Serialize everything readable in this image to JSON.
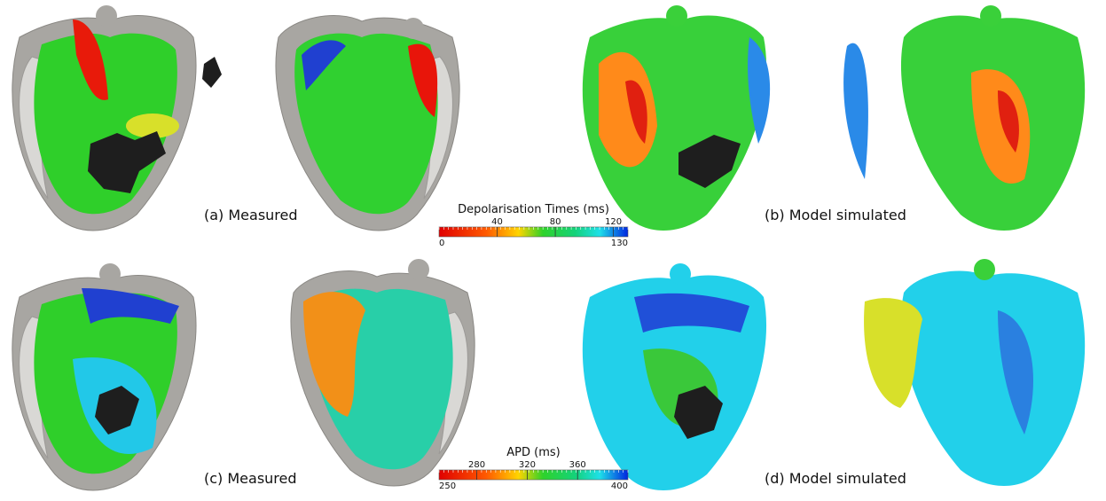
{
  "panels": [
    {
      "label": "(a) Measured"
    },
    {
      "label": "(b) Model simulated"
    },
    {
      "label": "(c) Measured"
    },
    {
      "label": "(d) Model simulated"
    }
  ],
  "colorbars": [
    {
      "title": "Depolarisation Times (ms)",
      "range": [
        0,
        130
      ],
      "ticks": [
        40,
        80,
        120
      ]
    },
    {
      "title": "APD (ms)",
      "range": [
        250,
        400
      ],
      "ticks": [
        280,
        320,
        360
      ]
    }
  ]
}
